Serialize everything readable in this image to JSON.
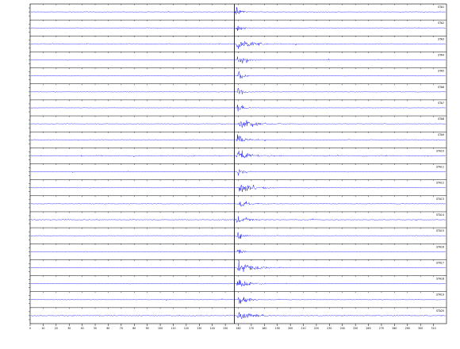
{
  "chart_data": {
    "type": "line",
    "title": "",
    "xlabel": "",
    "ylabel": "",
    "grid": false,
    "legend": "none",
    "colors": {
      "trace": "#1a1aff",
      "frame": "#000000",
      "marker": "#000000"
    },
    "x_ticks": [
      "0",
      "10",
      "20",
      "30",
      "40",
      "50",
      "60",
      "70",
      "80",
      "90",
      "100",
      "110",
      "120",
      "130",
      "140",
      "150",
      "160",
      "170",
      "180",
      "190",
      "200",
      "210",
      "220",
      "230",
      "240",
      "250",
      "260",
      "270",
      "280",
      "290",
      "300",
      "310"
    ],
    "event_marker_x": 157,
    "series": [
      {
        "name": "STA1",
        "noise": 0.05,
        "onset": 157.5,
        "amp": 1.0,
        "duration": 8
      },
      {
        "name": "STA2",
        "noise": 0.06,
        "onset": 158.0,
        "amp": 0.9,
        "duration": 10
      },
      {
        "name": "STA3",
        "noise": 0.1,
        "onset": 158.5,
        "amp": 1.0,
        "duration": 22
      },
      {
        "name": "STA4",
        "noise": 0.06,
        "onset": 158.5,
        "amp": 0.9,
        "duration": 16
      },
      {
        "name": "STA5",
        "noise": 0.05,
        "onset": 159.0,
        "amp": 0.8,
        "duration": 12
      },
      {
        "name": "STA6",
        "noise": 0.05,
        "onset": 159.0,
        "amp": 0.8,
        "duration": 11
      },
      {
        "name": "STA7",
        "noise": 0.04,
        "onset": 158.5,
        "amp": 0.8,
        "duration": 10
      },
      {
        "name": "STA8",
        "noise": 0.06,
        "onset": 160.0,
        "amp": 1.0,
        "duration": 25
      },
      {
        "name": "STA9",
        "noise": 0.08,
        "onset": 158.5,
        "amp": 0.9,
        "duration": 14
      },
      {
        "name": "STA10",
        "noise": 0.12,
        "onset": 158.5,
        "amp": 1.0,
        "duration": 20
      },
      {
        "name": "STA11",
        "noise": 0.05,
        "onset": 159.0,
        "amp": 0.8,
        "duration": 10
      },
      {
        "name": "STA12",
        "noise": 0.05,
        "onset": 160.0,
        "amp": 1.0,
        "duration": 22
      },
      {
        "name": "STA13",
        "noise": 0.07,
        "onset": 159.5,
        "amp": 0.9,
        "duration": 14
      },
      {
        "name": "STA14",
        "noise": 0.09,
        "onset": 158.0,
        "amp": 0.9,
        "duration": 16
      },
      {
        "name": "STA15",
        "noise": 0.05,
        "onset": 158.5,
        "amp": 0.8,
        "duration": 10
      },
      {
        "name": "STA16",
        "noise": 0.05,
        "onset": 158.0,
        "amp": 0.8,
        "duration": 9
      },
      {
        "name": "STA17",
        "noise": 0.06,
        "onset": 159.0,
        "amp": 1.0,
        "duration": 30
      },
      {
        "name": "STA18",
        "noise": 0.06,
        "onset": 158.5,
        "amp": 0.9,
        "duration": 18
      },
      {
        "name": "STA19",
        "noise": 0.06,
        "onset": 159.5,
        "amp": 0.9,
        "duration": 15
      },
      {
        "name": "STA20",
        "noise": 0.1,
        "onset": 159.0,
        "amp": 1.0,
        "duration": 22
      }
    ],
    "xlim": [
      0,
      320
    ]
  }
}
